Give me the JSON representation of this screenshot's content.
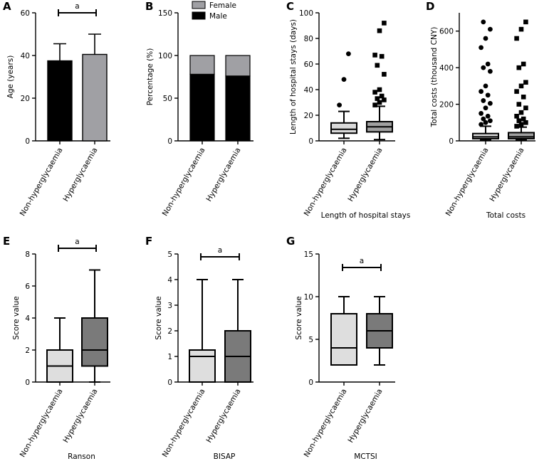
{
  "chart_data": [
    {
      "panel": "A",
      "type": "bar",
      "categories": [
        "Non-hyperglycaemia",
        "Hyperglycaemia"
      ],
      "values": [
        37.5,
        40.5
      ],
      "errors": [
        8,
        9.5
      ],
      "colors": [
        "#000000",
        "#a0a0a4"
      ],
      "ylabel": "Age (years)",
      "ylim": [
        0,
        60
      ],
      "yticks": [
        "0",
        "20",
        "40",
        "60"
      ],
      "significance": "a",
      "bottom_label": ""
    },
    {
      "panel": "B",
      "type": "bar",
      "categories": [
        "Non-hyperglycaemia",
        "Hyperglycaemia"
      ],
      "series": [
        {
          "name": "Male",
          "values": [
            78,
            76
          ],
          "color": "#000000"
        },
        {
          "name": "Female",
          "values": [
            22,
            24
          ],
          "color": "#a0a0a4"
        }
      ],
      "legend": [
        "Female",
        "Male"
      ],
      "ylabel": "Percentage (%)",
      "ylim": [
        0,
        150
      ],
      "yticks": [
        "0",
        "50",
        "100",
        "150"
      ],
      "bottom_label": ""
    },
    {
      "panel": "C",
      "type": "box",
      "categories": [
        "Non-hyperglycaemia",
        "Hyperglycaemia"
      ],
      "boxes": [
        {
          "min": 2,
          "q1": 6,
          "median": 9,
          "q3": 14,
          "max": 23,
          "color": "#d9d9d9",
          "outliers": [
            28,
            48,
            68
          ]
        },
        {
          "min": 1,
          "q1": 7,
          "median": 11,
          "q3": 15,
          "max": 27,
          "color": "#a0a0a0",
          "outliers": [
            28,
            30,
            32,
            33,
            35,
            38,
            40,
            52,
            59,
            66,
            67,
            86,
            92
          ]
        }
      ],
      "markers": [
        "circle",
        "square"
      ],
      "ylabel": "Length of hospital stays (days)",
      "ylim": [
        0,
        100
      ],
      "yticks": [
        "0",
        "20",
        "40",
        "60",
        "80",
        "100"
      ],
      "bottom_label": "Length of hospital stays"
    },
    {
      "panel": "D",
      "type": "box",
      "categories": [
        "Non-hyperglycaemia",
        "Hyperglycaemia"
      ],
      "boxes": [
        {
          "min": 5,
          "q1": 12,
          "median": 22,
          "q3": 40,
          "max": 80,
          "color": "#d9d9d9",
          "outliers": [
            90,
            100,
            110,
            120,
            135,
            150,
            180,
            205,
            220,
            250,
            270,
            300,
            380,
            400,
            420,
            510,
            560,
            610,
            650
          ]
        },
        {
          "min": 5,
          "q1": 12,
          "median": 22,
          "q3": 45,
          "max": 75,
          "color": "#a0a0a0",
          "outliers": [
            80,
            90,
            100,
            110,
            120,
            135,
            155,
            180,
            200,
            240,
            270,
            300,
            320,
            400,
            420,
            560,
            610,
            650
          ]
        }
      ],
      "markers": [
        "circle",
        "square"
      ],
      "ylabel": "Total costs (thousand CNY)",
      "ylim": [
        0,
        700
      ],
      "yticks": [
        "0",
        "200",
        "400",
        "600"
      ],
      "bottom_label": "Total costs"
    },
    {
      "panel": "E",
      "type": "box",
      "categories": [
        "Non-hyperglycaemia",
        "Hyperglycaemia"
      ],
      "boxes": [
        {
          "min": 0,
          "q1": 0,
          "median": 1,
          "q3": 2,
          "max": 4,
          "color": "#dedede"
        },
        {
          "min": 0,
          "q1": 1,
          "median": 2,
          "q3": 4,
          "max": 7,
          "color": "#7a7a7a"
        }
      ],
      "ylabel": "Score value",
      "ylim": [
        0,
        8
      ],
      "yticks": [
        "0",
        "2",
        "4",
        "6",
        "8"
      ],
      "significance": "a",
      "bottom_label": "Ranson"
    },
    {
      "panel": "F",
      "type": "box",
      "categories": [
        "Non-hyperglycaemia",
        "Hyperglycaemia"
      ],
      "boxes": [
        {
          "min": 0,
          "q1": 0,
          "median": 1,
          "q3": 1.25,
          "max": 4,
          "color": "#dedede"
        },
        {
          "min": 0,
          "q1": 0,
          "median": 1,
          "q3": 2,
          "max": 4,
          "color": "#7a7a7a"
        }
      ],
      "ylabel": "Score value",
      "ylim": [
        0,
        5
      ],
      "yticks": [
        "0",
        "1",
        "2",
        "3",
        "4",
        "5"
      ],
      "significance": "a",
      "bottom_label": "BISAP"
    },
    {
      "panel": "G",
      "type": "box",
      "categories": [
        "Non-hyperglycaemia",
        "Hyperglycaemia"
      ],
      "boxes": [
        {
          "min": 2,
          "q1": 2,
          "median": 4,
          "q3": 8,
          "max": 10,
          "color": "#dedede"
        },
        {
          "min": 2,
          "q1": 4,
          "median": 6,
          "q3": 8,
          "max": 10,
          "color": "#7a7a7a"
        }
      ],
      "ylabel": "Score value",
      "ylim": [
        0,
        15
      ],
      "yticks": [
        "0",
        "5",
        "10",
        "15"
      ],
      "significance": "a",
      "bottom_label": "MCTSI"
    }
  ]
}
